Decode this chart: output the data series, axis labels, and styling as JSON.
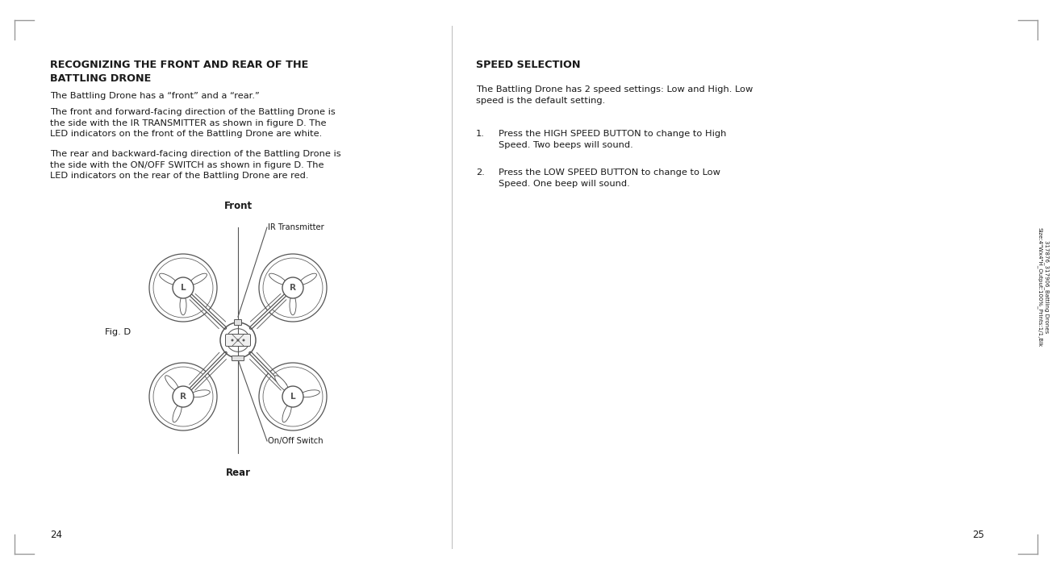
{
  "bg_color": "#ffffff",
  "text_color": "#1a1a1a",
  "drone_color": "#555555",
  "left_title_line1": "RECOGNIZING THE FRONT AND REAR OF THE",
  "left_title_line2": "BATTLING DRONE",
  "left_para1": "The Battling Drone has a “front” and a “rear.”",
  "left_para2": "The front and forward-facing direction of the Battling Drone is\nthe side with the IR TRANSMITTER as shown in figure D. The\nLED indicators on the front of the Battling Drone are white.",
  "left_para3": "The rear and backward-facing direction of the Battling Drone is\nthe side with the ON/OFF SWITCH as shown in figure D. The\nLED indicators on the rear of the Battling Drone are red.",
  "right_title": "SPEED SELECTION",
  "right_para1": "The Battling Drone has 2 speed settings: Low and High. Low\nspeed is the default setting.",
  "right_item1": "Press the HIGH SPEED BUTTON to change to High\nSpeed. Two beeps will sound.",
  "right_item2": "Press the LOW SPEED BUTTON to change to Low\nSpeed. One beep will sound.",
  "fig_label": "Fig. D",
  "fig_front": "Front",
  "fig_rear": "Rear",
  "fig_ir": "IR Transmitter",
  "fig_onoff": "On/Off Switch",
  "page_left": "24",
  "page_right": "25",
  "side_text_line1": "317876_317906_Battling Drones",
  "side_text_line2": "Size:4\"Wx4\"H_Output:100%_Prints:1/1,Blk"
}
